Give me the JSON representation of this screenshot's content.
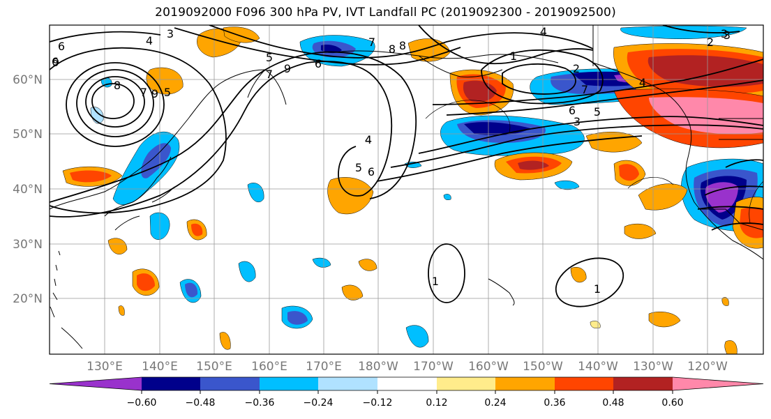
{
  "title": "2019092000 F096 300 hPa PV, IVT Landfall PC (2019092300 - 2019092500)",
  "map": {
    "lat_labels": [
      "60°N",
      "50°N",
      "40°N",
      "30°N",
      "20°N"
    ],
    "lon_labels": [
      "130°E",
      "140°E",
      "150°E",
      "160°E",
      "170°E",
      "180°W",
      "170°W",
      "160°W",
      "150°W",
      "140°W",
      "130°W",
      "120°W"
    ],
    "contour_labels": [
      "3",
      "4",
      "9",
      "6",
      "8",
      "7",
      "5",
      "7",
      "9",
      "5",
      "6",
      "8",
      "4",
      "7",
      "2",
      "3",
      "1",
      "4",
      "6",
      "7",
      "5",
      "3",
      "2",
      "4",
      "3",
      "4",
      "5",
      "6",
      "1",
      "1",
      "9",
      "8",
      "6"
    ]
  },
  "colorbar": {
    "ticks": [
      "−0.60",
      "−0.48",
      "−0.36",
      "−0.24",
      "−0.12",
      "0.12",
      "0.24",
      "0.36",
      "0.48",
      "0.60"
    ],
    "colors": [
      "#9932cc",
      "#00008b",
      "#3a56cc",
      "#00bfff",
      "#b0e2ff",
      "#ffffff",
      "#ffec8b",
      "#ffa500",
      "#ff4500",
      "#b22222",
      "#ff88aa"
    ]
  }
}
